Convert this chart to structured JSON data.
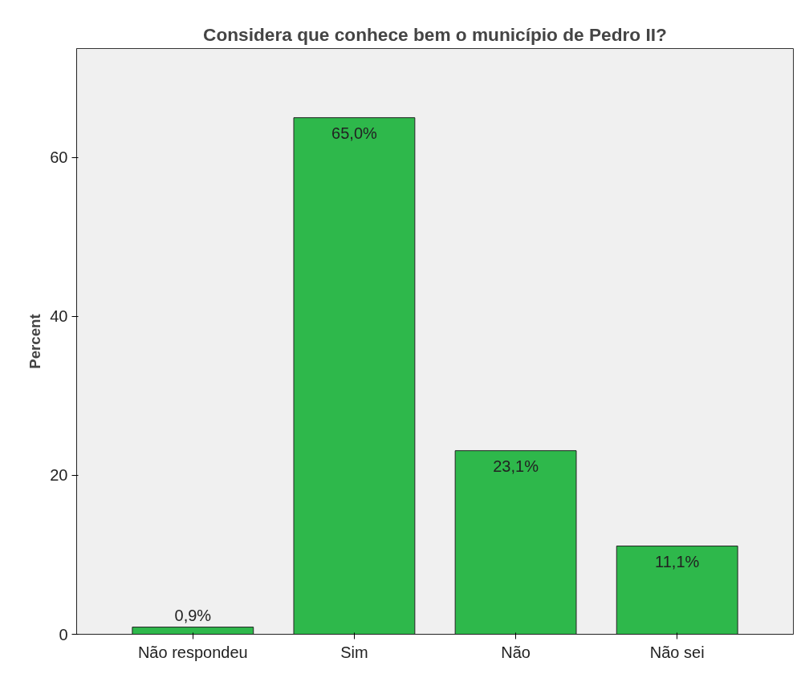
{
  "chart_data": {
    "type": "bar",
    "title": "Considera que conhece bem o município de Pedro II?",
    "ylabel": "Percent",
    "categories": [
      "Não respondeu",
      "Sim",
      "Não",
      "Não sei"
    ],
    "values": [
      0.9,
      65.0,
      23.1,
      11.1
    ],
    "color": "#2eb84b",
    "value_labels": [
      "0,9%",
      "65,0%",
      "23,1%",
      "11,1%"
    ],
    "ylim": [
      0,
      73.7
    ],
    "yticks": [
      0,
      20,
      40,
      60
    ],
    "grid": false
  }
}
